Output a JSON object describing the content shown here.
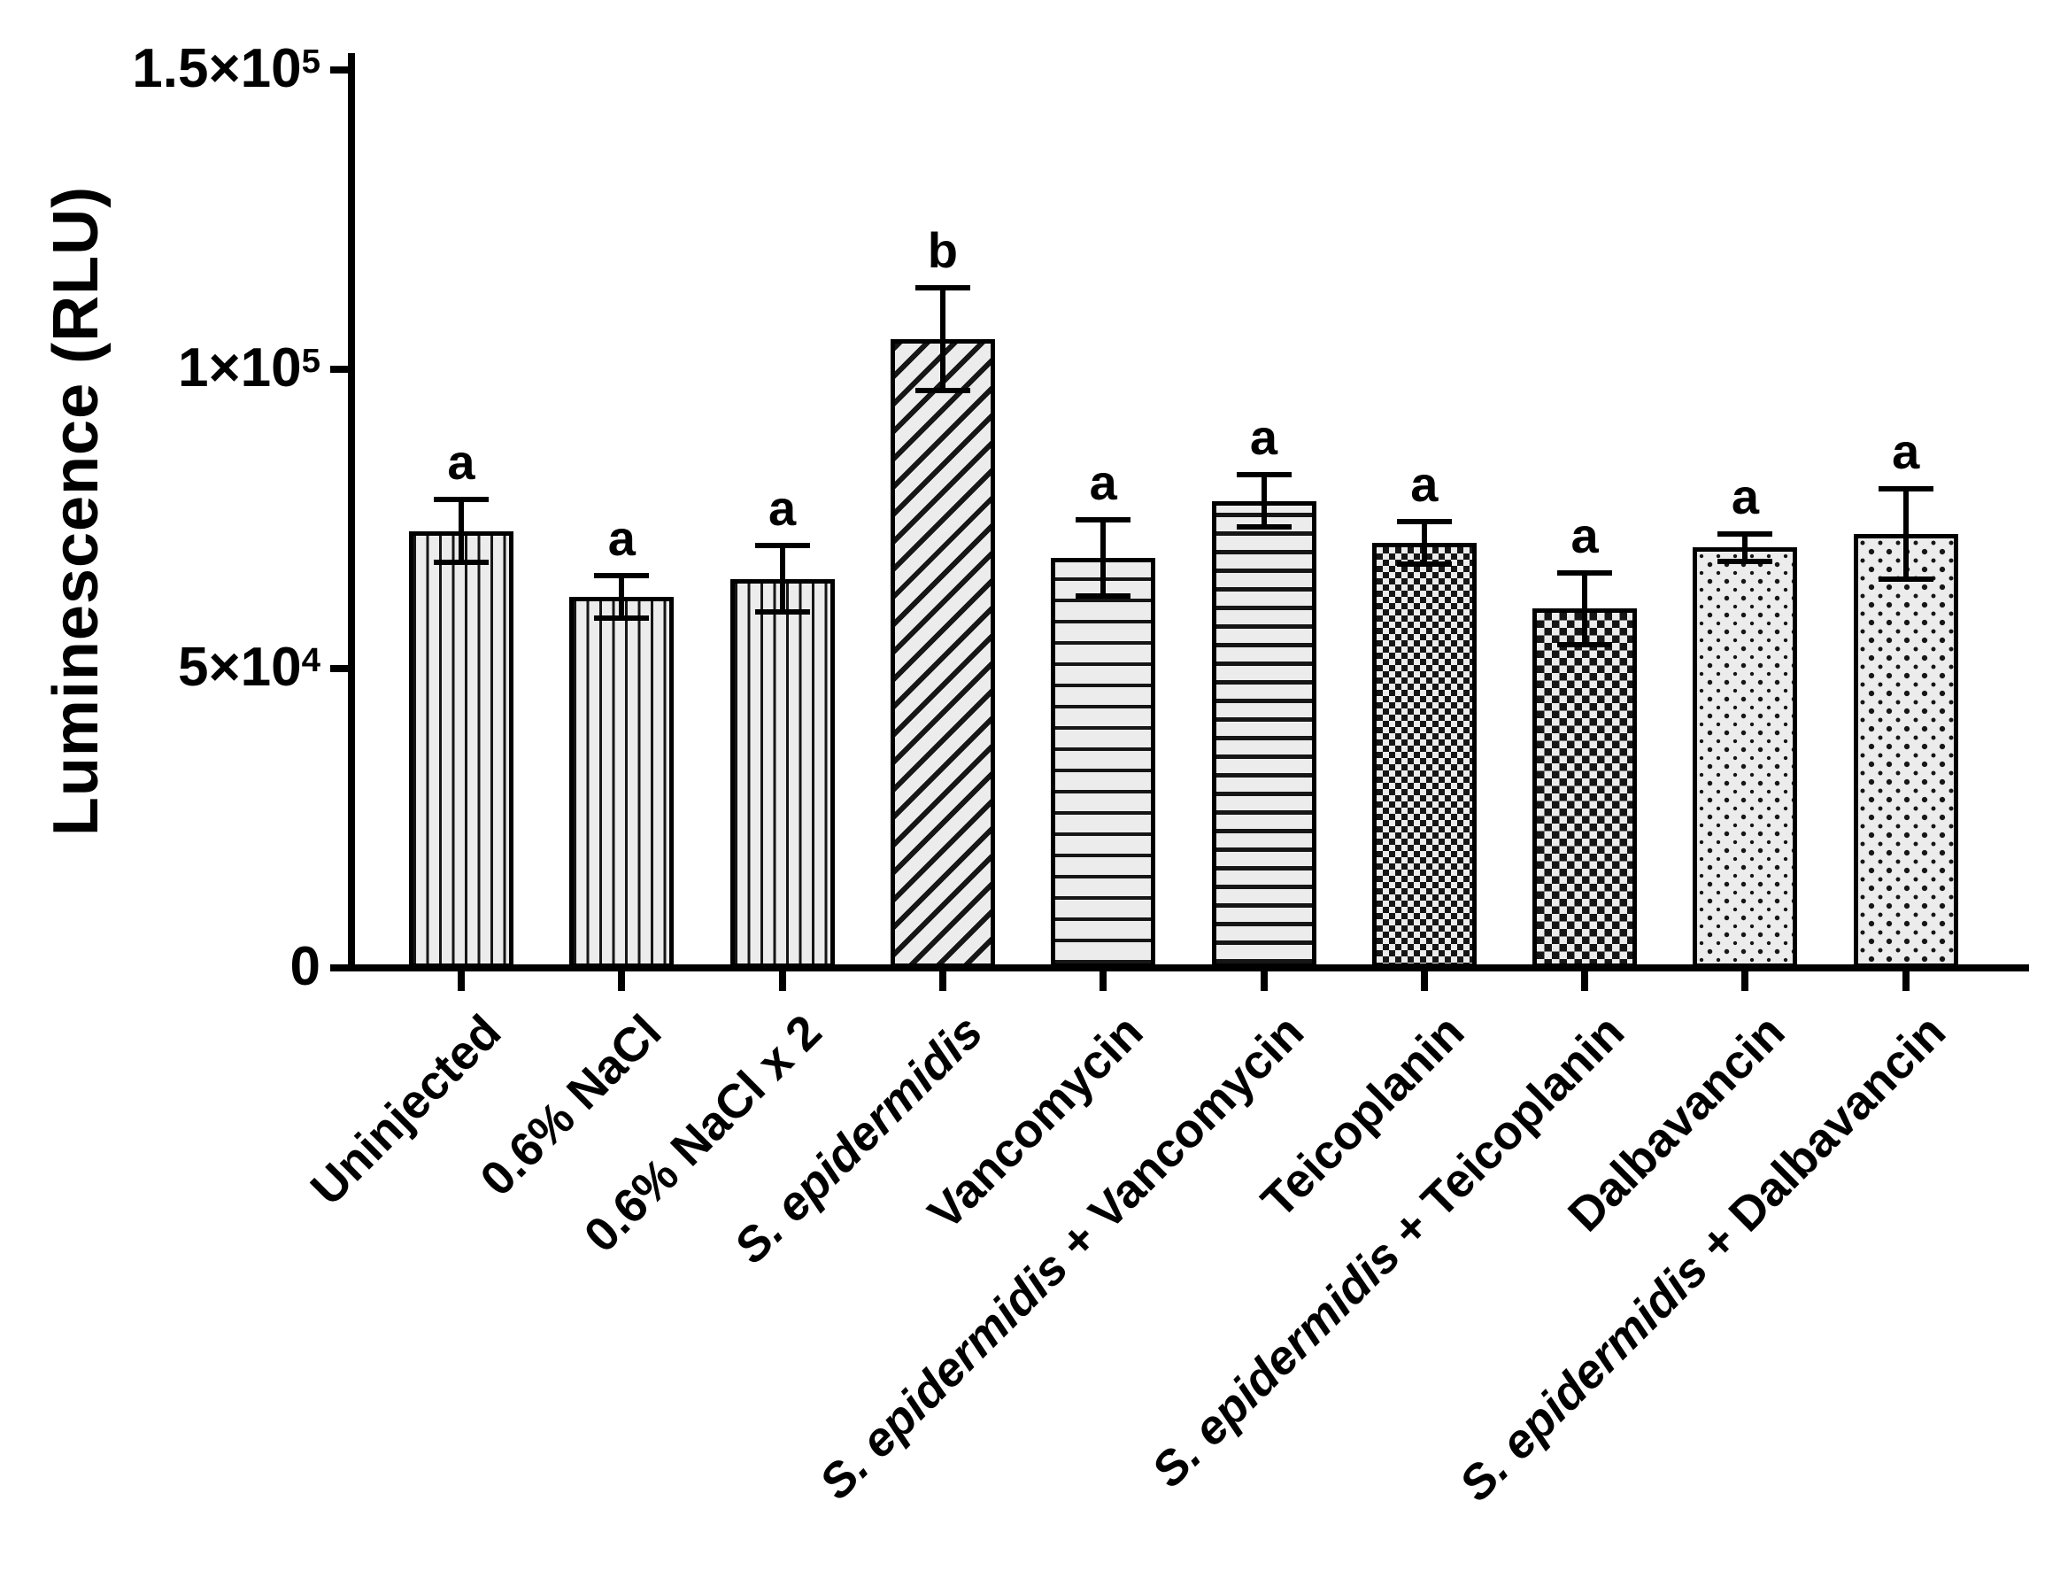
{
  "figure": {
    "background": "#ffffff",
    "text_color": "#000000",
    "bar_fill": "#ececec",
    "pattern_color": "#161616"
  },
  "chart_data": {
    "type": "bar",
    "title": "",
    "xlabel": "",
    "ylabel": "Luminescence (RLU)",
    "ylim": [
      0,
      150000
    ],
    "grid": false,
    "legend": false,
    "axis_style": "left-and-bottom-only, black, thick",
    "error_bars": "symmetric SD, capped, drawn over bars",
    "yticks": [
      {
        "value": 0,
        "base": "0",
        "sup": ""
      },
      {
        "value": 50000,
        "base": "5×10",
        "sup": "4"
      },
      {
        "value": 100000,
        "base": "1×10",
        "sup": "5"
      },
      {
        "value": 150000,
        "base": "1.5×10",
        "sup": "5"
      }
    ],
    "bars": [
      {
        "label_italic": "",
        "label_rest": "Uninjected",
        "value": 73000,
        "error": 5200,
        "letter": "a",
        "pattern": "vertical-lines"
      },
      {
        "label_italic": "",
        "label_rest": "0.6% NaCl",
        "value": 62000,
        "error": 3500,
        "letter": "a",
        "pattern": "vertical-lines"
      },
      {
        "label_italic": "",
        "label_rest": "0.6% NaCl x 2",
        "value": 65000,
        "error": 5500,
        "letter": "a",
        "pattern": "vertical-lines"
      },
      {
        "label_italic": "S. epidermidis",
        "label_rest": "",
        "value": 105000,
        "error": 8600,
        "letter": "b",
        "pattern": "diagonal-lines"
      },
      {
        "label_italic": "",
        "label_rest": "Vancomycin",
        "value": 68500,
        "error": 6300,
        "letter": "a",
        "pattern": "horizontal-lines"
      },
      {
        "label_italic": "S. epidermidis",
        "label_rest": " + Vancomycin",
        "value": 78000,
        "error": 4400,
        "letter": "a",
        "pattern": "horizontal-lines-dense"
      },
      {
        "label_italic": "",
        "label_rest": "Teicoplanin",
        "value": 71000,
        "error": 3500,
        "letter": "a",
        "pattern": "checkerboard-fine"
      },
      {
        "label_italic": "S. epidermidis",
        "label_rest": " + Teicoplanin",
        "value": 60000,
        "error": 6000,
        "letter": "a",
        "pattern": "checkerboard-coarse"
      },
      {
        "label_italic": "",
        "label_rest": "Dalbavancin",
        "value": 70200,
        "error": 2300,
        "letter": "a",
        "pattern": "dots"
      },
      {
        "label_italic": "S. epidermidis",
        "label_rest": " + Dalbavancin",
        "value": 72500,
        "error": 7500,
        "letter": "a",
        "pattern": "dots-large"
      }
    ]
  }
}
